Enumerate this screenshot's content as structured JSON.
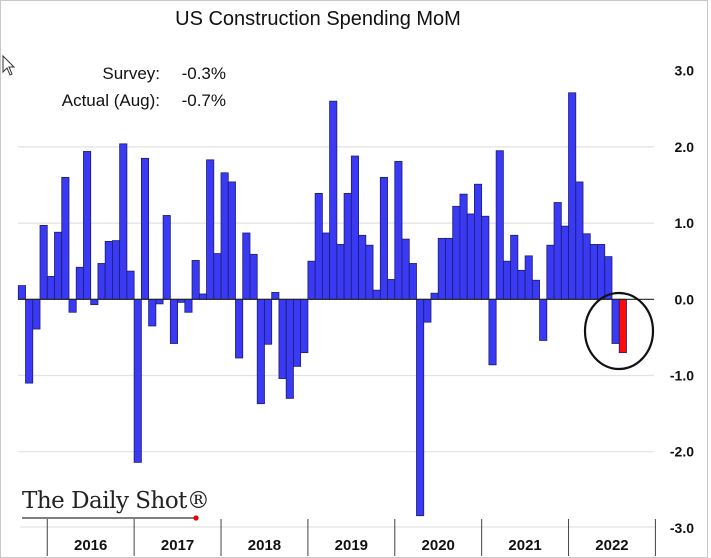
{
  "chart_data": {
    "type": "bar",
    "title": "US Construction Spending MoM",
    "xlabel": "",
    "ylabel": "",
    "ylim": [
      -3,
      3
    ],
    "yticks": [
      "3.0",
      "2.0",
      "1.0",
      "0.0",
      "-1.0",
      "-2.0",
      "-3.0"
    ],
    "ytick_values": [
      3,
      2,
      1,
      0,
      -1,
      -2,
      -3
    ],
    "year_labels": [
      "2016",
      "2017",
      "2018",
      "2019",
      "2020",
      "2021",
      "2022"
    ],
    "grid": true,
    "values": [
      0.18,
      -1.1,
      -0.39,
      0.97,
      0.3,
      0.88,
      1.6,
      -0.17,
      0.42,
      1.94,
      -0.07,
      0.47,
      0.76,
      0.77,
      2.04,
      0.37,
      -2.14,
      1.85,
      -0.35,
      -0.06,
      1.1,
      -0.58,
      -0.04,
      -0.17,
      0.51,
      0.07,
      1.83,
      0.6,
      1.66,
      1.54,
      -0.77,
      0.87,
      0.59,
      -1.37,
      -0.59,
      0.09,
      -1.04,
      -1.3,
      -0.88,
      -0.7,
      0.5,
      1.39,
      0.87,
      2.6,
      0.72,
      1.39,
      1.88,
      0.84,
      0.71,
      0.12,
      1.6,
      0.26,
      1.81,
      0.79,
      0.47,
      -2.84,
      -0.3,
      0.08,
      0.8,
      0.8,
      1.22,
      1.38,
      1.12,
      1.51,
      1.09,
      -0.86,
      1.95,
      0.5,
      0.84,
      0.38,
      0.57,
      0.25,
      -0.54,
      0.71,
      1.27,
      0.96,
      2.71,
      1.54,
      0.86,
      0.72,
      0.72,
      0.56,
      -0.58,
      -0.7
    ],
    "highlight_index": 83,
    "colors": {
      "bar": "#3a3af4",
      "bar_stroke": "#1c1c70",
      "highlight": "#ff0a0a",
      "grid": "#e2e2e2"
    },
    "annotations": {
      "survey_label": "Survey:",
      "survey_value": "-0.3%",
      "actual_label": "Actual (Aug):",
      "actual_value": "-0.7%"
    }
  },
  "branding": {
    "logo": "The Daily Shot®"
  }
}
